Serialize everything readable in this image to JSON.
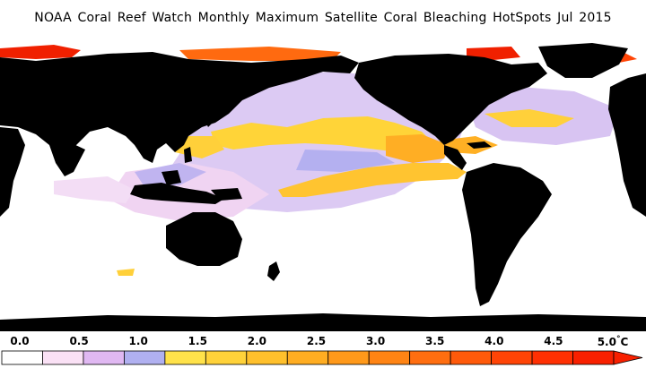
{
  "title": "NOAA Coral Reef Watch Monthly Maximum Satellite Coral Bleaching HotSpots   Jul 2015",
  "legend": {
    "labels": [
      "0.0",
      "0.5",
      "1.0",
      "1.5",
      "2.0",
      "2.5",
      "3.0",
      "3.5",
      "4.0",
      "4.5",
      "5.0"
    ],
    "unit": "°C",
    "colors": [
      "#ffffff",
      "#fae1f5",
      "#e0b8f2",
      "#b0b0f0",
      "#ffe24a",
      "#ffd23a",
      "#ffc02c",
      "#ffad22",
      "#ff991a",
      "#ff8414",
      "#ff6e10",
      "#ff5a0a",
      "#ff4406",
      "#ff3003",
      "#f82000"
    ]
  },
  "colors": {
    "land": "#000000",
    "ocean": "#ffffff",
    "lavender": "#d8c4f2",
    "blue_lavender": "#b4b0f0",
    "pink": "#f6dcf4",
    "yellow": "#ffd438",
    "orange": "#ffb024",
    "deep_orange": "#ff6a10",
    "red": "#f02000"
  }
}
